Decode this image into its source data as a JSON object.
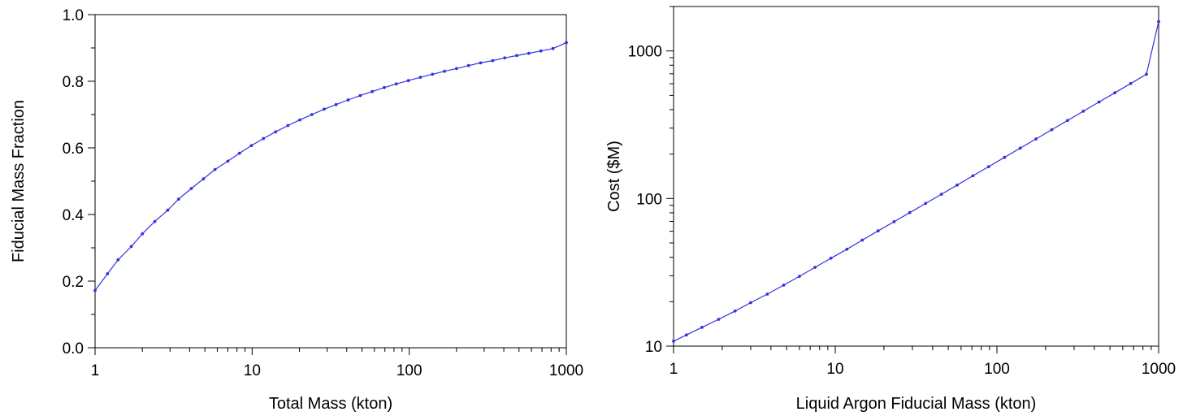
{
  "colors": {
    "series": "#3333dd",
    "axis": "#000000",
    "background": "#ffffff"
  },
  "chart_data": [
    {
      "type": "line",
      "xscale": "log",
      "yscale": "linear",
      "xlabel": "Total Mass (kton)",
      "ylabel": "Fiducial Mass Fraction",
      "xlim": [
        1,
        1000
      ],
      "ylim": [
        0.0,
        1.0
      ],
      "xticks": [
        1,
        10,
        100,
        1000
      ],
      "xtick_labels": [
        "1",
        "10",
        "100",
        "1000"
      ],
      "yticks": [
        0.0,
        0.2,
        0.4,
        0.6,
        0.8,
        1.0
      ],
      "ytick_labels": [
        "0.0",
        "0.2",
        "0.4",
        "0.6",
        "0.8",
        "1.0"
      ],
      "grid": false,
      "legend": "none",
      "series": [
        {
          "x": [
            1,
            1.2,
            1.4,
            1.7,
            2,
            2.4,
            2.9,
            3.4,
            4.1,
            4.9,
            5.8,
            7,
            8.3,
            9.9,
            11.8,
            14.1,
            16.9,
            20.1,
            24,
            28.7,
            34.2,
            40.8,
            48.7,
            58.1,
            69.3,
            82.7,
            98.7,
            117.8,
            140.5,
            167.7,
            200,
            238.7,
            284.8,
            339.8,
            405.5,
            483.8,
            577.3,
            688.8,
            821.9,
            1000
          ],
          "y": [
            0.172,
            0.222,
            0.264,
            0.304,
            0.342,
            0.379,
            0.413,
            0.446,
            0.478,
            0.507,
            0.535,
            0.56,
            0.584,
            0.607,
            0.628,
            0.648,
            0.667,
            0.684,
            0.7,
            0.716,
            0.73,
            0.744,
            0.757,
            0.769,
            0.781,
            0.792,
            0.802,
            0.812,
            0.821,
            0.83,
            0.838,
            0.847,
            0.855,
            0.862,
            0.87,
            0.877,
            0.884,
            0.891,
            0.898,
            0.916
          ]
        }
      ]
    },
    {
      "type": "line",
      "xscale": "log",
      "yscale": "log",
      "xlabel": "Liquid Argon Fiducial Mass (kton)",
      "ylabel": "Cost ($M)",
      "xlim": [
        1,
        1000
      ],
      "ylim": [
        10,
        2000
      ],
      "xticks": [
        1,
        10,
        100,
        1000
      ],
      "xtick_labels": [
        "1",
        "10",
        "100",
        "1000"
      ],
      "yticks": [
        10,
        100,
        1000
      ],
      "ytick_labels": [
        "10",
        "100",
        "1000"
      ],
      "grid": false,
      "legend": "none",
      "series": [
        {
          "x": [
            1,
            1.2,
            1.5,
            1.9,
            2.4,
            3,
            3.8,
            4.8,
            6,
            7.5,
            9.4,
            11.8,
            14.7,
            18.4,
            23.1,
            28.9,
            36.2,
            45.3,
            56.7,
            71,
            88.9,
            111.3,
            139.3,
            174.4,
            218.3,
            273.3,
            342.2,
            428.4,
            536.3,
            671.4,
            840.5,
            1000
          ],
          "y": [
            10.8,
            11.9,
            13.4,
            15.2,
            17.3,
            19.7,
            22.5,
            25.9,
            29.7,
            34.2,
            39.4,
            45.3,
            52.3,
            60.3,
            69.6,
            80.3,
            92.6,
            106.9,
            123.4,
            142.5,
            164.5,
            190,
            219.4,
            253.3,
            292.6,
            337.9,
            390.3,
            450.8,
            520.7,
            601.4,
            694.6,
            1580
          ]
        }
      ]
    }
  ]
}
